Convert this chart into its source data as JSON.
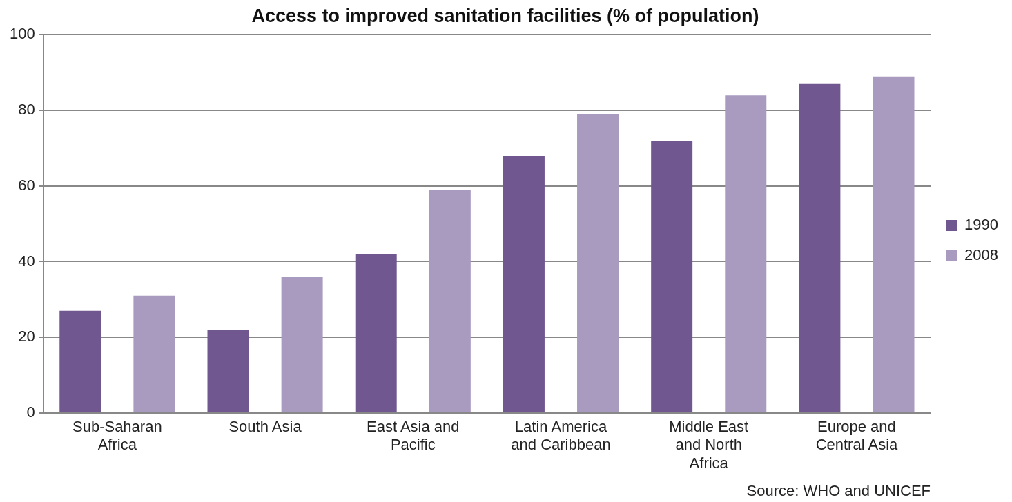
{
  "chart_data": {
    "type": "bar",
    "title": "Access to improved sanitation facilities (% of population)",
    "categories": [
      "Sub-Saharan Africa",
      "South Asia",
      "East Asia and Pacific",
      "Latin America and Caribbean",
      "Middle East and North Africa",
      "Europe and Central Asia"
    ],
    "series": [
      {
        "name": "1990",
        "color": "#705790",
        "values": [
          27,
          22,
          42,
          68,
          72,
          87
        ]
      },
      {
        "name": "2008",
        "color": "#a99abf",
        "values": [
          31,
          36,
          59,
          79,
          84,
          89
        ]
      }
    ],
    "ylim": [
      0,
      100
    ],
    "yticks": [
      0,
      20,
      40,
      60,
      80,
      100
    ],
    "grid": "y",
    "legend": "right",
    "annotations": [
      "Source: WHO and UNICEF"
    ]
  }
}
